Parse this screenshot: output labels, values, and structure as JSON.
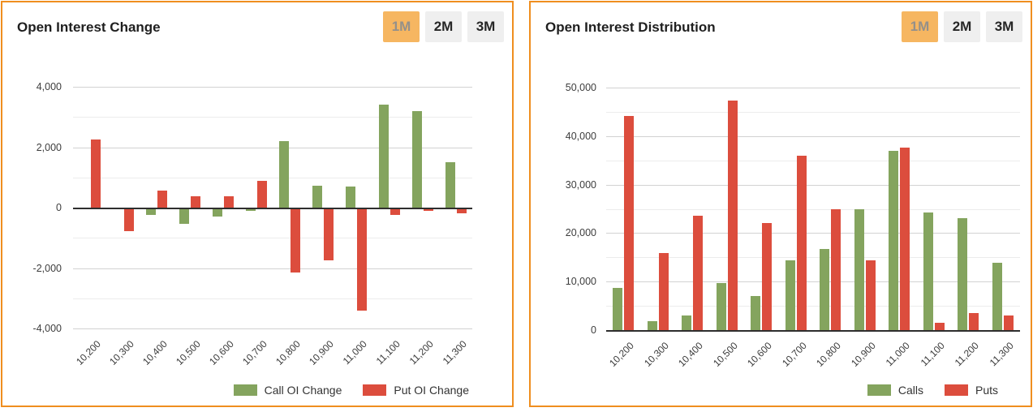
{
  "colors": {
    "panel_border": "#ef8e1f",
    "call_green": "#84a45e",
    "put_red": "#dc4d3d",
    "active_tab_bg": "#f6b661",
    "active_tab_text": "#94908a",
    "inactive_tab_bg": "#efefef",
    "inactive_tab_text": "#262626"
  },
  "panels": [
    {
      "title": "Open Interest Change",
      "timeframes": [
        {
          "label": "1M",
          "active": true
        },
        {
          "label": "2M",
          "active": false
        },
        {
          "label": "3M",
          "active": false
        }
      ]
    },
    {
      "title": "Open Interest Distribution",
      "timeframes": [
        {
          "label": "1M",
          "active": true
        },
        {
          "label": "2M",
          "active": false
        },
        {
          "label": "3M",
          "active": false
        }
      ]
    }
  ],
  "chart_data": [
    {
      "type": "bar",
      "title": "Open Interest Change",
      "categories": [
        "10,200",
        "10,300",
        "10,400",
        "10,500",
        "10,600",
        "10,700",
        "10,800",
        "10,900",
        "11,000",
        "11,100",
        "11,200",
        "11,300"
      ],
      "series": [
        {
          "name": "Call OI Change",
          "color": "#84a45e",
          "values": [
            -60,
            -60,
            -250,
            -550,
            -300,
            -100,
            2200,
            730,
            700,
            3400,
            3200,
            1500
          ]
        },
        {
          "name": "Put OI Change",
          "color": "#dc4d3d",
          "values": [
            2250,
            -780,
            570,
            380,
            380,
            890,
            -2150,
            -1740,
            -3400,
            -250,
            -120,
            -200
          ]
        }
      ],
      "xlabel": "",
      "ylabel": "",
      "ylim": [
        -4000,
        4000
      ],
      "ytick_step": 2000,
      "minor_gridline_step": 1000,
      "grid": true,
      "legend_position": "bottom-right"
    },
    {
      "type": "bar",
      "title": "Open Interest Distribution",
      "categories": [
        "10,200",
        "10,300",
        "10,400",
        "10,500",
        "10,600",
        "10,700",
        "10,800",
        "10,900",
        "11,000",
        "11,100",
        "11,200",
        "11,300"
      ],
      "series": [
        {
          "name": "Calls",
          "color": "#84a45e",
          "values": [
            8700,
            1800,
            3000,
            9700,
            7100,
            14400,
            16800,
            24900,
            37000,
            24200,
            23000,
            13800
          ]
        },
        {
          "name": "Puts",
          "color": "#dc4d3d",
          "values": [
            44200,
            15900,
            23600,
            47300,
            22100,
            35900,
            25000,
            14300,
            37700,
            1500,
            3500,
            3000
          ]
        }
      ],
      "xlabel": "",
      "ylabel": "",
      "ylim": [
        0,
        50000
      ],
      "ytick_step": 10000,
      "minor_gridline_step": 5000,
      "grid": true,
      "legend_position": "bottom-right"
    }
  ]
}
